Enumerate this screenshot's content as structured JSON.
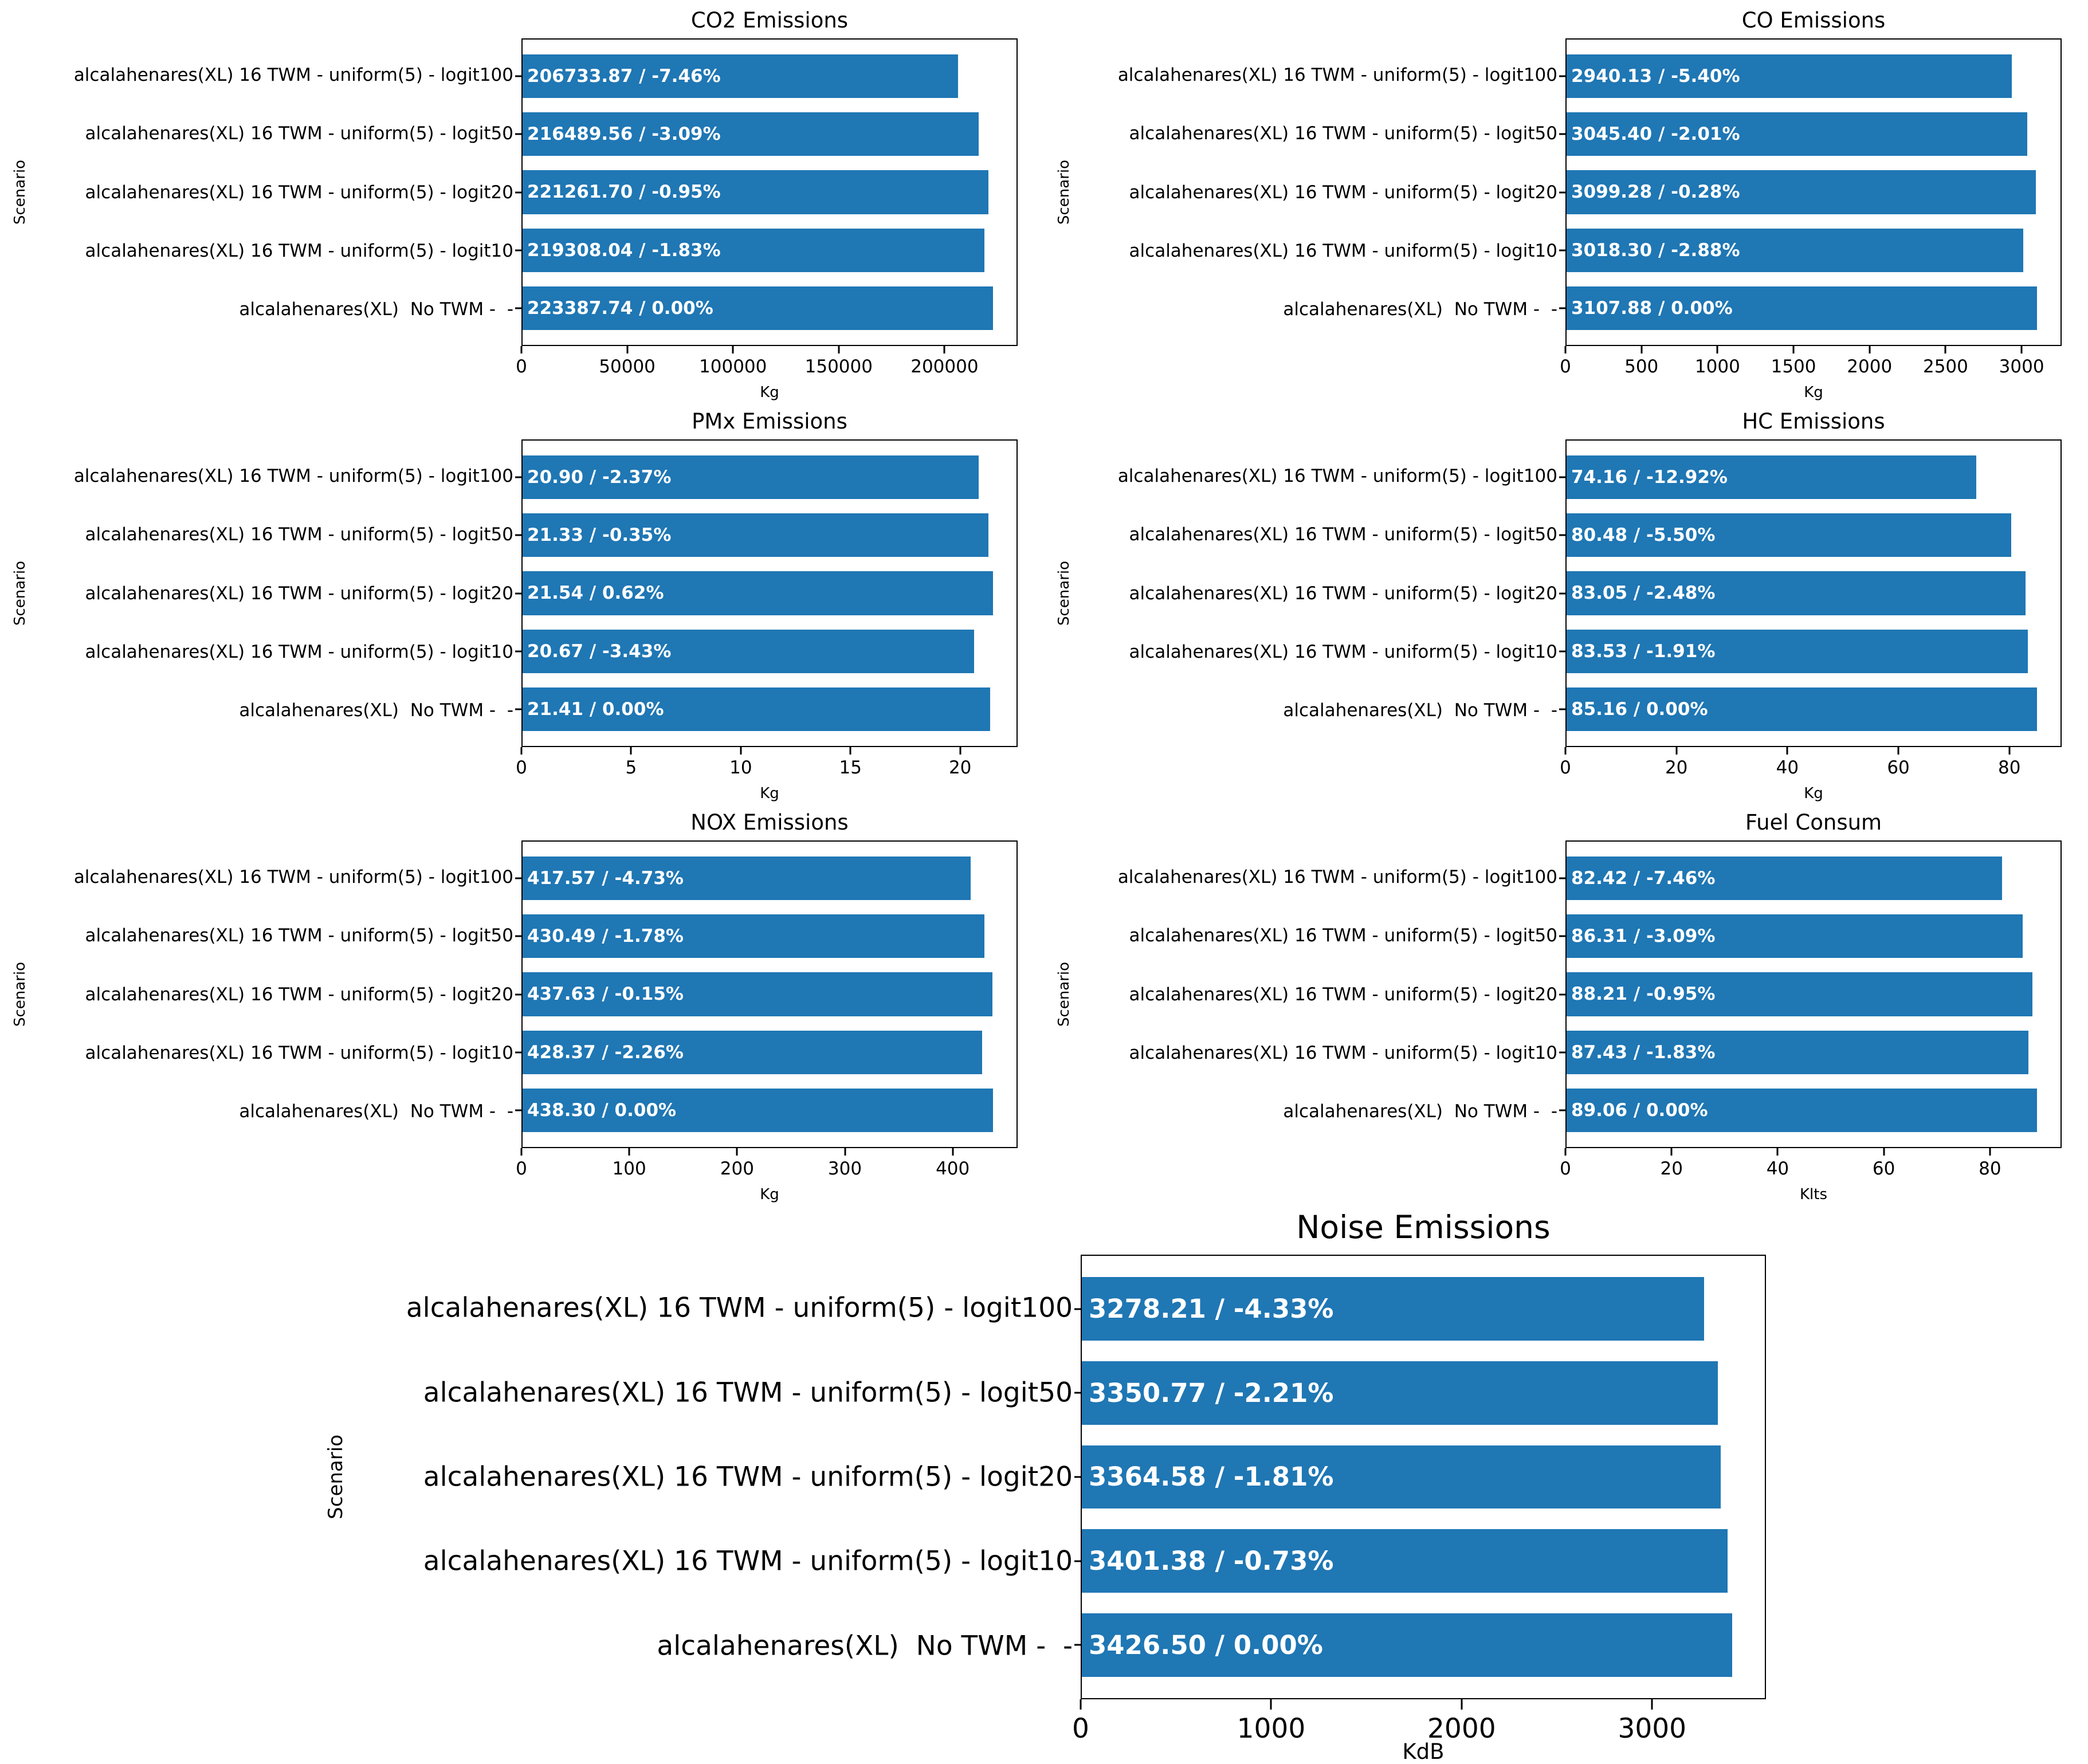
{
  "figure": {
    "background": "#ffffff",
    "bar_color": "#1f77b4",
    "bar_label_color": "#ffffff",
    "axis_color": "#000000",
    "text_color": "#000000",
    "ylabel": "Scenario"
  },
  "chart_data": [
    {
      "id": "co2-emissions",
      "type": "bar",
      "orientation": "horizontal",
      "title": "CO2 Emissions",
      "xlabel": "Kg",
      "ylabel": "Scenario",
      "categories": [
        "alcalahenares(XL) 16 TWM - uniform(5) - logit100",
        "alcalahenares(XL) 16 TWM - uniform(5) - logit50",
        "alcalahenares(XL) 16 TWM - uniform(5) - logit20",
        "alcalahenares(XL) 16 TWM - uniform(5) - logit10",
        "alcalahenares(XL)  No TWM -  -"
      ],
      "values": [
        206733.87,
        216489.56,
        221261.7,
        219308.04,
        223387.74
      ],
      "bar_labels": [
        "206733.87 / -7.46%",
        "216489.56 / -3.09%",
        "221261.70 / -0.95%",
        "219308.04 / -1.83%",
        "223387.74 / 0.00%"
      ],
      "xticks": [
        0,
        50000,
        100000,
        150000,
        200000
      ],
      "xtick_labels": [
        "0",
        "50000",
        "100000",
        "150000",
        "200000"
      ],
      "xlim": [
        0,
        234557.13
      ],
      "grid": false,
      "legend": null
    },
    {
      "id": "co-emissions",
      "type": "bar",
      "orientation": "horizontal",
      "title": "CO Emissions",
      "xlabel": "Kg",
      "ylabel": "Scenario",
      "categories": [
        "alcalahenares(XL) 16 TWM - uniform(5) - logit100",
        "alcalahenares(XL) 16 TWM - uniform(5) - logit50",
        "alcalahenares(XL) 16 TWM - uniform(5) - logit20",
        "alcalahenares(XL) 16 TWM - uniform(5) - logit10",
        "alcalahenares(XL)  No TWM -  -"
      ],
      "values": [
        2940.13,
        3045.4,
        3099.28,
        3018.3,
        3107.88
      ],
      "bar_labels": [
        "2940.13 / -5.40%",
        "3045.40 / -2.01%",
        "3099.28 / -0.28%",
        "3018.30 / -2.88%",
        "3107.88 / 0.00%"
      ],
      "xticks": [
        0,
        500,
        1000,
        1500,
        2000,
        2500,
        3000
      ],
      "xtick_labels": [
        "0",
        "500",
        "1000",
        "1500",
        "2000",
        "2500",
        "3000"
      ],
      "xlim": [
        0,
        3263.27
      ],
      "grid": false,
      "legend": null
    },
    {
      "id": "pmx-emissions",
      "type": "bar",
      "orientation": "horizontal",
      "title": "PMx Emissions",
      "xlabel": "Kg",
      "ylabel": "Scenario",
      "categories": [
        "alcalahenares(XL) 16 TWM - uniform(5) - logit100",
        "alcalahenares(XL) 16 TWM - uniform(5) - logit50",
        "alcalahenares(XL) 16 TWM - uniform(5) - logit20",
        "alcalahenares(XL) 16 TWM - uniform(5) - logit10",
        "alcalahenares(XL)  No TWM -  -"
      ],
      "values": [
        20.9,
        21.33,
        21.54,
        20.67,
        21.41
      ],
      "bar_labels": [
        "20.90 / -2.37%",
        "21.33 / -0.35%",
        "21.54 / 0.62%",
        "20.67 / -3.43%",
        "21.41 / 0.00%"
      ],
      "xticks": [
        0,
        5,
        10,
        15,
        20
      ],
      "xtick_labels": [
        "0",
        "5",
        "10",
        "15",
        "20"
      ],
      "xlim": [
        0,
        22.62
      ],
      "grid": false,
      "legend": null
    },
    {
      "id": "hc-emissions",
      "type": "bar",
      "orientation": "horizontal",
      "title": "HC Emissions",
      "xlabel": "Kg",
      "ylabel": "Scenario",
      "categories": [
        "alcalahenares(XL) 16 TWM - uniform(5) - logit100",
        "alcalahenares(XL) 16 TWM - uniform(5) - logit50",
        "alcalahenares(XL) 16 TWM - uniform(5) - logit20",
        "alcalahenares(XL) 16 TWM - uniform(5) - logit10",
        "alcalahenares(XL)  No TWM -  -"
      ],
      "values": [
        74.16,
        80.48,
        83.05,
        83.53,
        85.16
      ],
      "bar_labels": [
        "74.16 / -12.92%",
        "80.48 / -5.50%",
        "83.05 / -2.48%",
        "83.53 / -1.91%",
        "85.16 / 0.00%"
      ],
      "xticks": [
        0,
        20,
        40,
        60,
        80
      ],
      "xtick_labels": [
        "0",
        "20",
        "40",
        "60",
        "80"
      ],
      "xlim": [
        0,
        89.42
      ],
      "grid": false,
      "legend": null
    },
    {
      "id": "nox-emissions",
      "type": "bar",
      "orientation": "horizontal",
      "title": "NOX Emissions",
      "xlabel": "Kg",
      "ylabel": "Scenario",
      "categories": [
        "alcalahenares(XL) 16 TWM - uniform(5) - logit100",
        "alcalahenares(XL) 16 TWM - uniform(5) - logit50",
        "alcalahenares(XL) 16 TWM - uniform(5) - logit20",
        "alcalahenares(XL) 16 TWM - uniform(5) - logit10",
        "alcalahenares(XL)  No TWM -  -"
      ],
      "values": [
        417.57,
        430.49,
        437.63,
        428.37,
        438.3
      ],
      "bar_labels": [
        "417.57 / -4.73%",
        "430.49 / -1.78%",
        "437.63 / -0.15%",
        "428.37 / -2.26%",
        "438.30 / 0.00%"
      ],
      "xticks": [
        0,
        100,
        200,
        300,
        400
      ],
      "xtick_labels": [
        "0",
        "100",
        "200",
        "300",
        "400"
      ],
      "xlim": [
        0,
        460.22
      ],
      "grid": false,
      "legend": null
    },
    {
      "id": "fuel-consum",
      "type": "bar",
      "orientation": "horizontal",
      "title": "Fuel Consum",
      "xlabel": "Klts",
      "ylabel": "Scenario",
      "categories": [
        "alcalahenares(XL) 16 TWM - uniform(5) - logit100",
        "alcalahenares(XL) 16 TWM - uniform(5) - logit50",
        "alcalahenares(XL) 16 TWM - uniform(5) - logit20",
        "alcalahenares(XL) 16 TWM - uniform(5) - logit10",
        "alcalahenares(XL)  No TWM -  -"
      ],
      "values": [
        82.42,
        86.31,
        88.21,
        87.43,
        89.06
      ],
      "bar_labels": [
        "82.42 / -7.46%",
        "86.31 / -3.09%",
        "88.21 / -0.95%",
        "87.43 / -1.83%",
        "89.06 / 0.00%"
      ],
      "xticks": [
        0,
        20,
        40,
        60,
        80
      ],
      "xtick_labels": [
        "0",
        "20",
        "40",
        "60",
        "80"
      ],
      "xlim": [
        0,
        93.51
      ],
      "grid": false,
      "legend": null
    },
    {
      "id": "noise-emissions",
      "type": "bar",
      "orientation": "horizontal",
      "title": "Noise Emissions",
      "xlabel": "KdB",
      "ylabel": "Scenario",
      "categories": [
        "alcalahenares(XL) 16 TWM - uniform(5) - logit100",
        "alcalahenares(XL) 16 TWM - uniform(5) - logit50",
        "alcalahenares(XL) 16 TWM - uniform(5) - logit20",
        "alcalahenares(XL) 16 TWM - uniform(5) - logit10",
        "alcalahenares(XL)  No TWM -  -"
      ],
      "values": [
        3278.21,
        3350.77,
        3364.58,
        3401.38,
        3426.5
      ],
      "bar_labels": [
        "3278.21 / -4.33%",
        "3350.77 / -2.21%",
        "3364.58 / -1.81%",
        "3401.38 / -0.73%",
        "3426.50 / 0.00%"
      ],
      "xticks": [
        0,
        1000,
        2000,
        3000
      ],
      "xtick_labels": [
        "0",
        "1000",
        "2000",
        "3000"
      ],
      "xlim": [
        0,
        3597.83
      ],
      "grid": false,
      "legend": null
    }
  ]
}
